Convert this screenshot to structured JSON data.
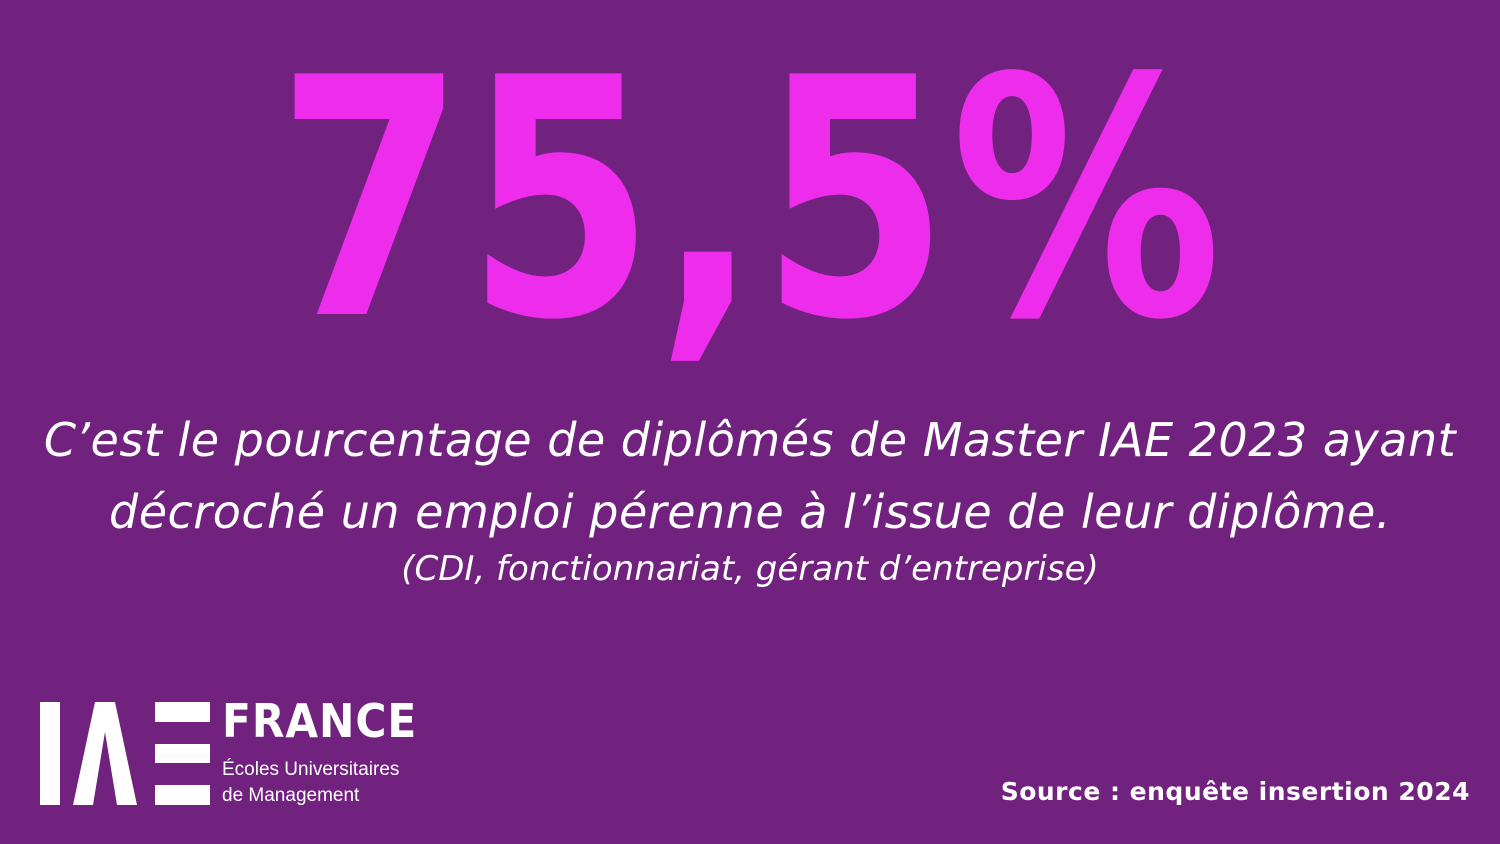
{
  "headline": {
    "value": "75,5%"
  },
  "caption": {
    "line1": "C’est le pourcentage de diplômés de Master IAE 2023 ayant",
    "line2": "décroché un emploi pérenne à l’issue de leur diplôme.",
    "note": "(CDI, fonctionnariat, gérant d’entreprise)"
  },
  "logo": {
    "mark_text": "IAE",
    "brand": "FRANCE",
    "subtitle_line1": "Écoles Universitaires",
    "subtitle_line2": "de Management"
  },
  "source": "Source : enquête insertion 2024",
  "colors": {
    "background": "#71217e",
    "accent": "#ee2cec",
    "text": "#ffffff"
  }
}
